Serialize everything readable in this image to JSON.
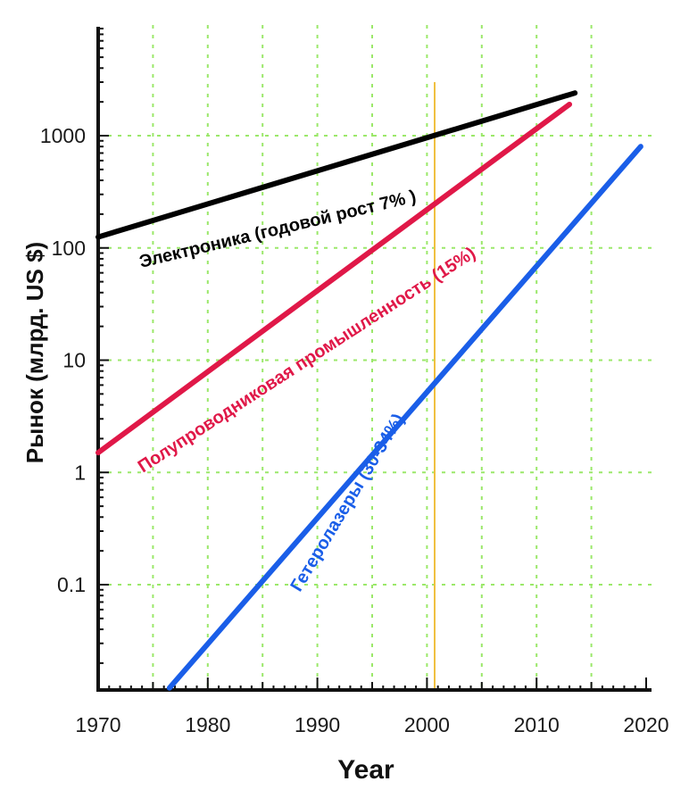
{
  "chart_data": {
    "type": "line",
    "title": "",
    "xlabel": "Year",
    "ylabel": "Рынок (млрд. US $)",
    "xscale": "linear",
    "yscale": "log",
    "xlim": [
      1970,
      2020
    ],
    "ylim": [
      0.01,
      10000
    ],
    "x_ticks": [
      {
        "value": 1970,
        "label": "1970"
      },
      {
        "value": 1980,
        "label": "1980"
      },
      {
        "value": 1990,
        "label": "1990"
      },
      {
        "value": 2000,
        "label": "2000"
      },
      {
        "value": 2010,
        "label": "2010"
      },
      {
        "value": 2020,
        "label": "2020"
      }
    ],
    "y_ticks": [
      {
        "value": 0.1,
        "label": "0.1"
      },
      {
        "value": 1,
        "label": "1"
      },
      {
        "value": 10,
        "label": "10"
      },
      {
        "value": 100,
        "label": "100"
      },
      {
        "value": 1000,
        "label": "1000"
      }
    ],
    "grid": true,
    "grid_color": "#9be86a",
    "reference_line": {
      "x": 2000.7,
      "color": "#f0c040"
    },
    "series": [
      {
        "id": "electronics",
        "name": "Электроника  (годовой рост  7% )",
        "color": "#000000",
        "points": [
          [
            1970,
            125
          ],
          [
            2013.5,
            2400
          ]
        ]
      },
      {
        "id": "semiconductors",
        "name": "Полупроводниковая промышленность (15%)",
        "color": "#e01848",
        "points": [
          [
            1970,
            1.5
          ],
          [
            2013,
            1900
          ]
        ]
      },
      {
        "id": "heterolasers",
        "name": "Гетеролазеры  (30-34%)",
        "color": "#1a5ee8",
        "points": [
          [
            1976.5,
            0.012
          ],
          [
            2019.5,
            800
          ]
        ]
      }
    ]
  }
}
